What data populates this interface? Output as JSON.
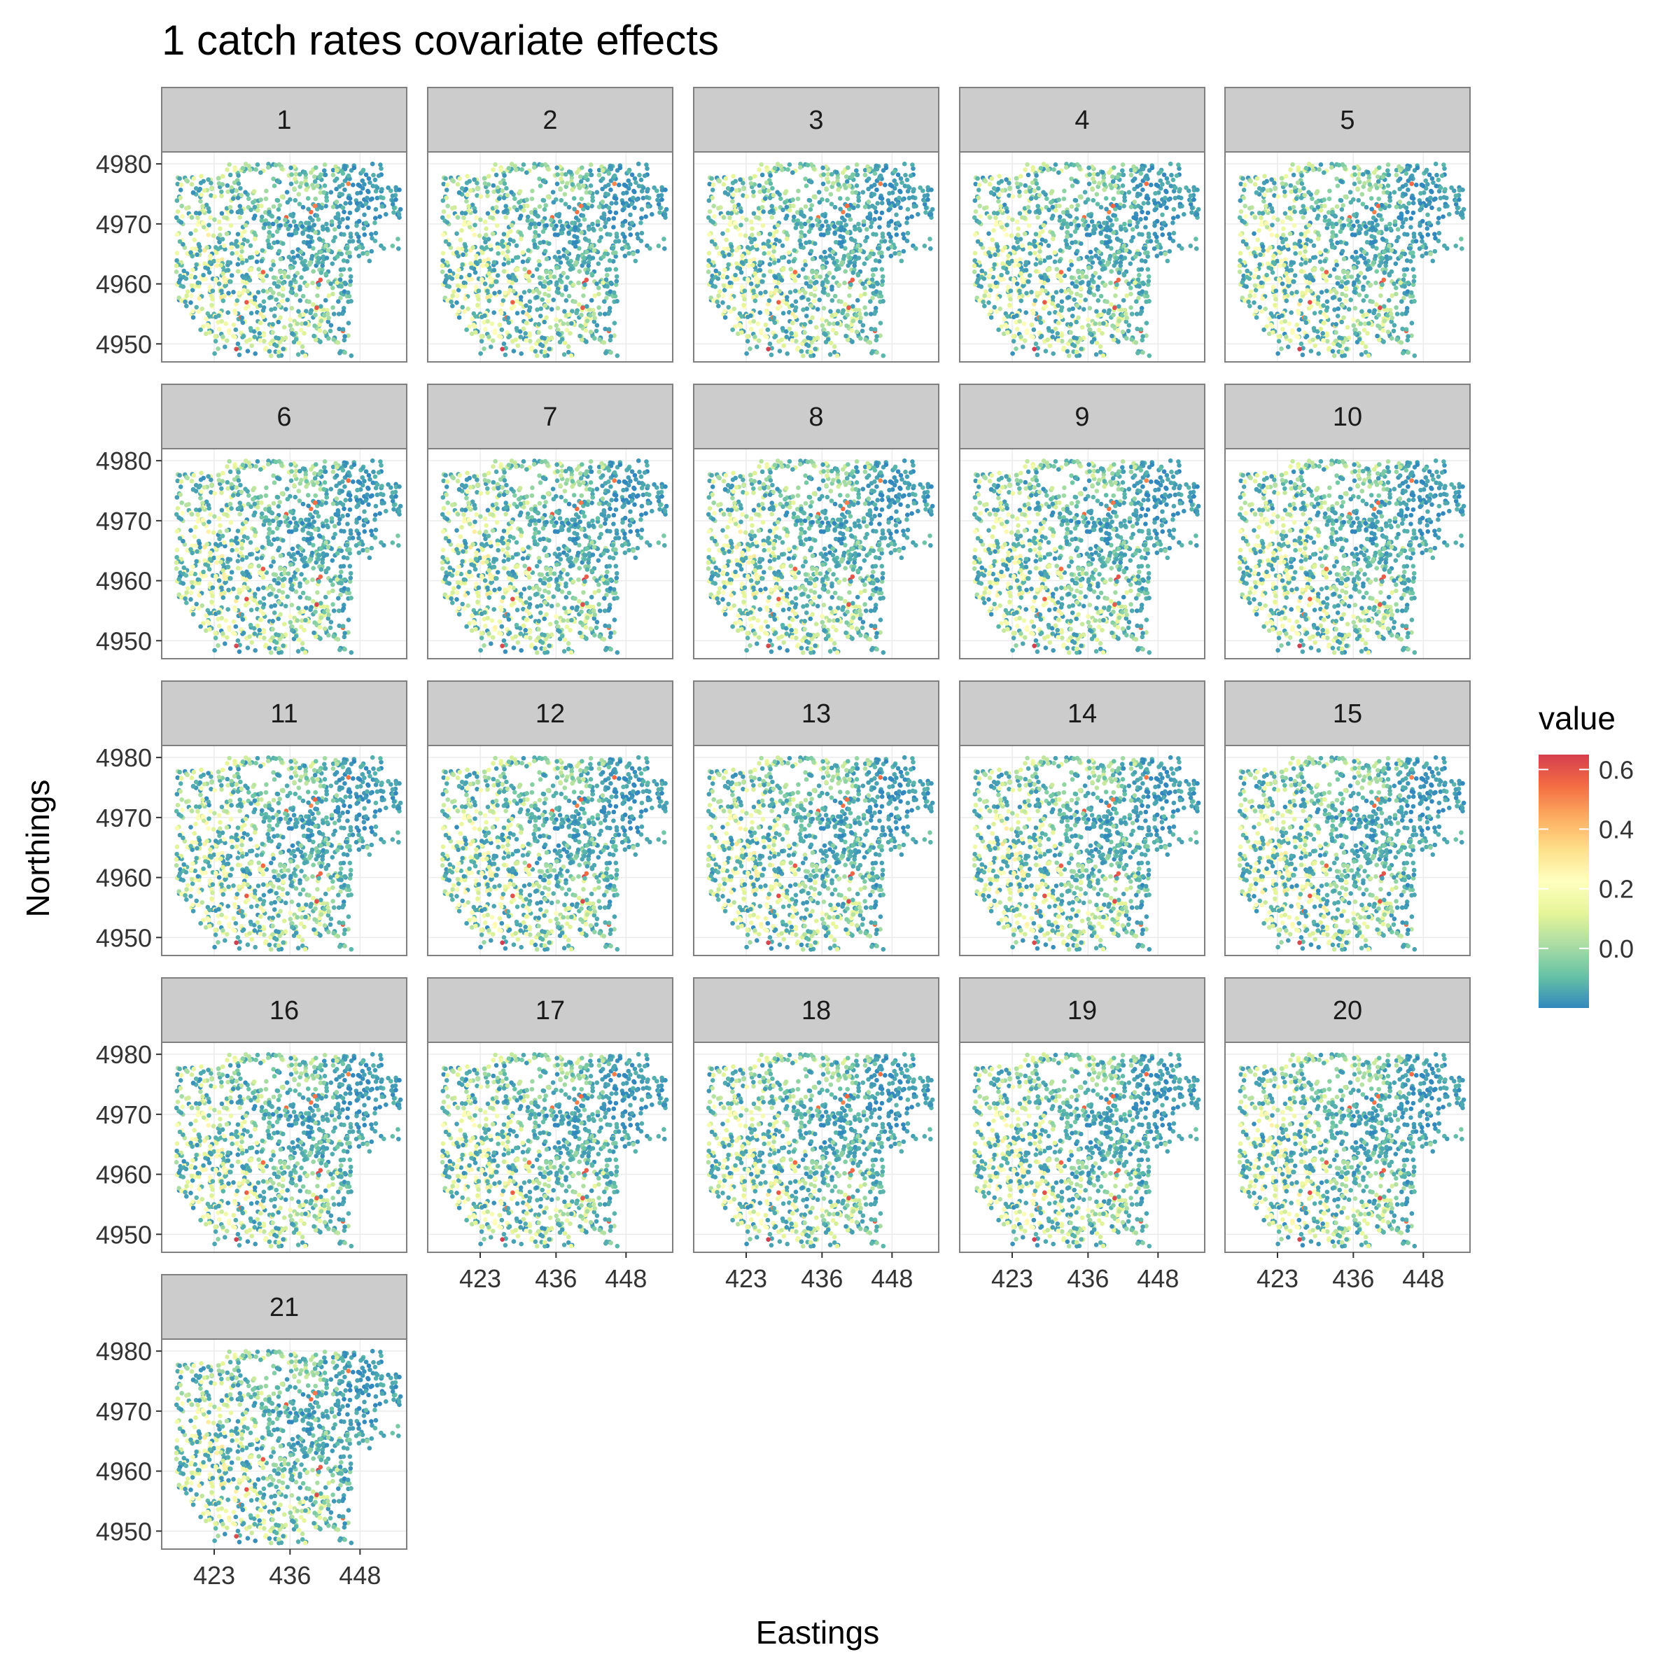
{
  "chart_data": {
    "type": "scatter",
    "title": "1 catch rates covariate effects",
    "xlabel": "Eastings",
    "ylabel": "Northings",
    "facets": [
      "1",
      "2",
      "3",
      "4",
      "5",
      "6",
      "7",
      "8",
      "9",
      "10",
      "11",
      "12",
      "13",
      "14",
      "15",
      "16",
      "17",
      "18",
      "19",
      "20",
      "21"
    ],
    "x_ticks": [
      423,
      436,
      448
    ],
    "y_ticks": [
      4950,
      4960,
      4970,
      4980
    ],
    "xlim": [
      414,
      456
    ],
    "ylim": [
      4947,
      4982
    ],
    "legend": {
      "title": "value",
      "position": "right",
      "ticks": [
        0.6,
        0.4,
        0.2,
        0.0
      ],
      "tick_labels": [
        "0.6",
        "0.4",
        "0.2",
        "0.0"
      ],
      "range": [
        -0.2,
        0.65
      ],
      "colors": [
        "#3288bd",
        "#66c2a5",
        "#abdda4",
        "#e6f598",
        "#ffffbf",
        "#fee08b",
        "#fdae61",
        "#f46d43",
        "#d53e4f"
      ]
    },
    "grid": true,
    "background": "white",
    "strip_fill": "#cccccc"
  }
}
